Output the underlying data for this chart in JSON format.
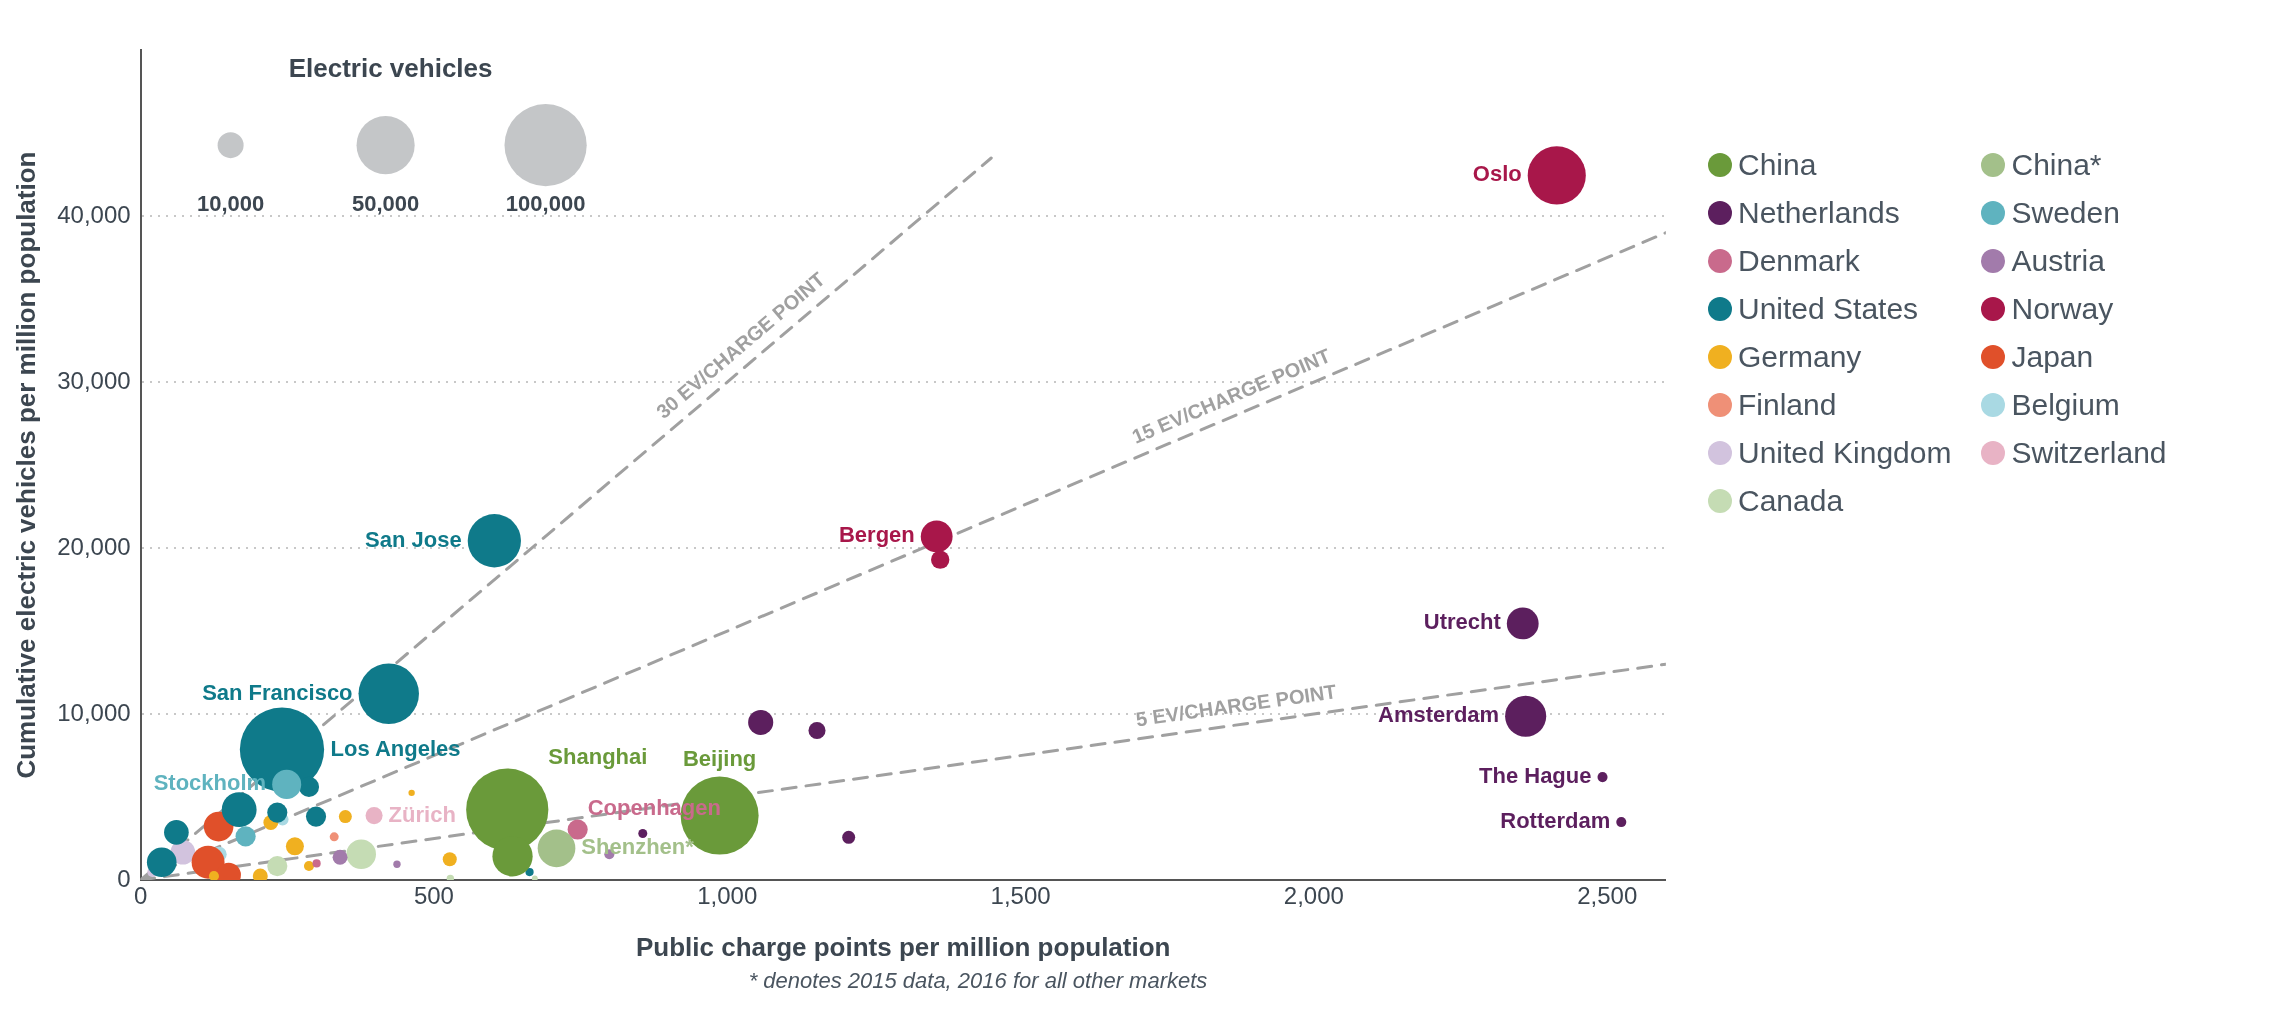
{
  "chart_data": {
    "type": "bubble",
    "xlabel": "Public charge points per million population",
    "ylabel": "Cumulative electric vehicles per million population",
    "legend_title": "Electric vehicles",
    "size_legend": [
      {
        "value": 10000,
        "label": "10,000"
      },
      {
        "value": 50000,
        "label": "50,000"
      },
      {
        "value": 100000,
        "label": "100,000"
      }
    ],
    "xlim": [
      0,
      2600
    ],
    "xticks": [
      0,
      500,
      {
        "value": 1000,
        "label": "1,000"
      },
      {
        "value": 1500,
        "label": "1,500"
      },
      {
        "value": 2000,
        "label": "2,000"
      },
      {
        "value": 2500,
        "label": "2,500"
      }
    ],
    "ylim": [
      0,
      50000
    ],
    "yticks": [
      0,
      {
        "value": 10000,
        "label": "10,000"
      },
      {
        "value": 20000,
        "label": "20,000"
      },
      {
        "value": 30000,
        "label": "30,000"
      },
      {
        "value": 40000,
        "label": "40,000"
      }
    ],
    "grid": "y",
    "legend": "right",
    "series": [
      {
        "name": "30 EV/CHARGE POINT",
        "type": "line",
        "line_style": "dashed",
        "color": "#a0a0a0",
        "x": [
          0,
          1450
        ],
        "values": [
          0,
          43500
        ]
      },
      {
        "name": "15 EV/CHARGE POINT",
        "type": "line",
        "line_style": "dashed",
        "color": "#a0a0a0",
        "x": [
          0,
          2600
        ],
        "values": [
          0,
          39000
        ]
      },
      {
        "name": "5 EV/CHARGE POINT",
        "type": "line",
        "line_style": "dashed",
        "color": "#a0a0a0",
        "x": [
          0,
          2600
        ],
        "values": [
          0,
          13000
        ]
      },
      {
        "name": "China",
        "color": "#6a9a3a",
        "x": [
          625,
          634,
          987
        ],
        "values": [
          4240,
          1430,
          3880
        ],
        "sizes": [
          100000,
          24000,
          90000
        ]
      },
      {
        "name": "China*",
        "color": "#a3c08a",
        "x": [
          709
        ],
        "values": [
          1910
        ],
        "sizes": [
          21000
        ]
      },
      {
        "name": "Netherlands",
        "color": "#5c1f5e",
        "x": [
          2361,
          2356,
          2492,
          2524,
          1057,
          1153,
          1207,
          856
        ],
        "values": [
          9870,
          15460,
          6200,
          3490,
          9490,
          9010,
          2570,
          2800
        ],
        "sizes": [
          25000,
          15000,
          1500,
          1500,
          9300,
          4300,
          2500,
          1200
        ]
      },
      {
        "name": "Sweden",
        "color": "#5fb3bf",
        "x": [
          249,
          179
        ],
        "values": [
          5760,
          2630
        ],
        "sizes": [
          12500,
          6000
        ]
      },
      {
        "name": "Denmark",
        "color": "#c96a8c",
        "x": [
          745,
          300
        ],
        "values": [
          3040,
          1000
        ],
        "sizes": [
          6000,
          1000
        ]
      },
      {
        "name": "Austria",
        "color": "#a27bab",
        "x": [
          340,
          799,
          437
        ],
        "values": [
          1370,
          1550,
          950
        ],
        "sizes": [
          3300,
          1500,
          800
        ]
      },
      {
        "name": "United States",
        "color": "#0f7a8a",
        "x": [
          241,
          423,
          603,
          168,
          61,
          287,
          299,
          36,
          233,
          663
        ],
        "values": [
          7860,
          11220,
          20440,
          4240,
          2870,
          5610,
          3820,
          1070,
          4060,
          480
        ],
        "sizes": [
          105000,
          54000,
          42000,
          18000,
          9000,
          6000,
          6000,
          13000,
          6000,
          1000
        ]
      },
      {
        "name": "Norway",
        "color": "#a8174a",
        "x": [
          2414,
          1357,
          1363
        ],
        "values": [
          42450,
          20700,
          19300
        ],
        "sizes": [
          50000,
          15000,
          5000
        ]
      },
      {
        "name": "Germany",
        "color": "#f0b020",
        "x": [
          462,
          349,
          527,
          263,
          222,
          204,
          287,
          125
        ],
        "values": [
          5250,
          3820,
          1250,
          2030,
          3460,
          240,
          840,
          240
        ],
        "sizes": [
          600,
          2500,
          2900,
          4800,
          3300,
          3300,
          1500,
          1500
        ]
      },
      {
        "name": "Japan",
        "color": "#e0502a",
        "x": [
          133,
          115,
          150
        ],
        "values": [
          3220,
          1070,
          300
        ],
        "sizes": [
          13000,
          16000,
          9000
        ]
      },
      {
        "name": "Finland",
        "color": "#ef9077",
        "x": [
          330
        ],
        "values": [
          2600
        ],
        "sizes": [
          1200
        ]
      },
      {
        "name": "Belgium",
        "color": "#a9d9e3",
        "x": [
          134,
          242
        ],
        "values": [
          1550,
          3640
        ],
        "sizes": [
          3300,
          2100
        ]
      },
      {
        "name": "United Kingdom",
        "color": "#d2c3de",
        "x": [
          72,
          20
        ],
        "values": [
          1670,
          480
        ],
        "sizes": [
          9000,
          1500
        ]
      },
      {
        "name": "Switzerland",
        "color": "#e8b3c5",
        "x": [
          398
        ],
        "values": [
          3880
        ],
        "sizes": [
          4300
        ]
      },
      {
        "name": "Canada",
        "color": "#c5dcb4",
        "x": [
          376,
          233,
          528,
          672
        ],
        "values": [
          1550,
          840,
          100,
          100
        ],
        "sizes": [
          13000,
          6000,
          800,
          500
        ]
      }
    ],
    "annotations": [
      {
        "text": "Oslo",
        "x": 2414,
        "y": 42450
      },
      {
        "text": "Bergen",
        "x": 1357,
        "y": 20700
      },
      {
        "text": "San Jose",
        "x": 603,
        "y": 20440
      },
      {
        "text": "San Francisco",
        "x": 423,
        "y": 11220
      },
      {
        "text": "Los Angeles",
        "x": 241,
        "y": 7860
      },
      {
        "text": "Stockholm",
        "x": 249,
        "y": 5760
      },
      {
        "text": "Shanghai",
        "x": 625,
        "y": 4240
      },
      {
        "text": "Copenhagen",
        "x": 745,
        "y": 3040
      },
      {
        "text": "Zürich",
        "x": 398,
        "y": 3880
      },
      {
        "text": "Beijing",
        "x": 987,
        "y": 3880
      },
      {
        "text": "Shenzhen*",
        "x": 709,
        "y": 1910
      },
      {
        "text": "Utrecht",
        "x": 2356,
        "y": 15460
      },
      {
        "text": "Amsterdam",
        "x": 2361,
        "y": 9870
      },
      {
        "text": "The Hague",
        "x": 2492,
        "y": 6200
      },
      {
        "text": "Rotterdam",
        "x": 2524,
        "y": 3490
      },
      "* denotes 2015 data, 2016 for all other markets"
    ]
  }
}
